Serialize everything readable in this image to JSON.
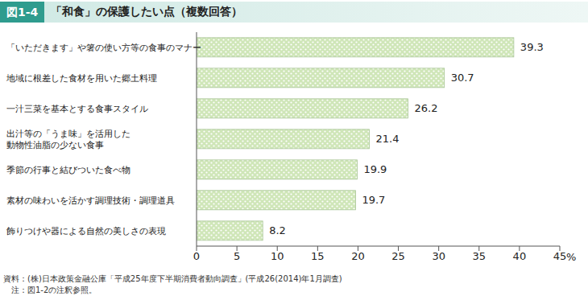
{
  "chart_data": {
    "type": "bar",
    "figure_number": "図1-4",
    "title": "「和食」の保護したい点（複数回答）",
    "orientation": "horizontal",
    "categories": [
      "「いただきます」や箸の使い方等の食事のマナー",
      "地域に根差した食材を用いた郷土料理",
      "一汁三菜を基本とする食事スタイル",
      "出汁等の「うま味」を活用した\n動物性油脂の少ない食事",
      "季節の行事と結びついた食べ物",
      "素材の味わいを活かす調理技術・調理道具",
      "飾りつけや器による自然の美しさの表現"
    ],
    "values": [
      39.3,
      30.7,
      26.2,
      21.4,
      19.9,
      19.7,
      8.2
    ],
    "color": "#cfe6b8",
    "xlim": [
      0,
      45
    ],
    "xticks": [
      0,
      5,
      10,
      15,
      20,
      25,
      30,
      35,
      40,
      45
    ],
    "x_label": "%",
    "grid": false,
    "data_labels": true,
    "notes": [
      "資料：(株)日本政策金融公庫「平成25年度下半期消費者動向調査」(平成26(2014)年1月調査)",
      "　注：図1-2の注釈参照。"
    ]
  }
}
